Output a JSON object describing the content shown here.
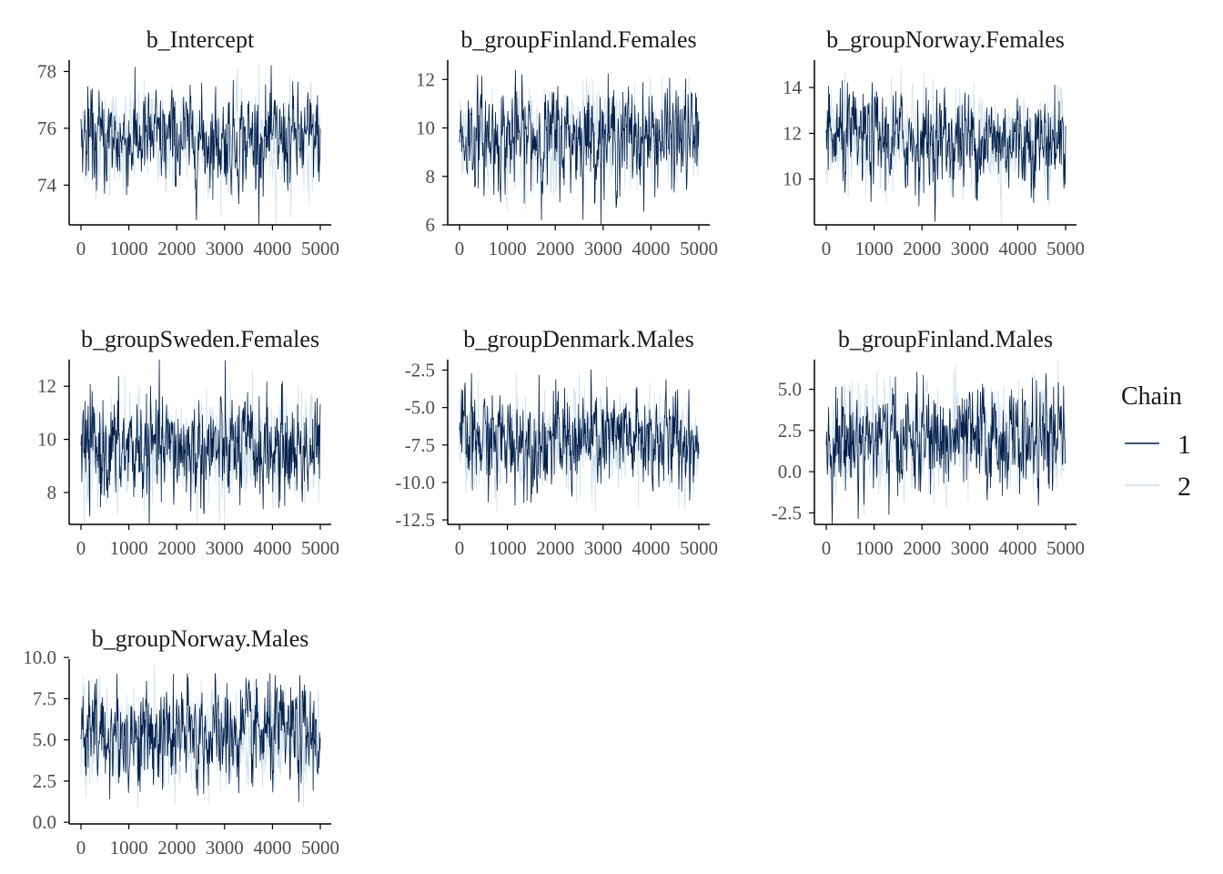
{
  "colors": {
    "chain1": "#011f4b",
    "chain2": "#d1e1ec",
    "axis": "#000000",
    "text": "#1a1a1a",
    "tick_text": "#4d4d4d"
  },
  "chart_data": [
    {
      "type": "line",
      "title": "b_Intercept",
      "xlim": [
        0,
        5000
      ],
      "x_ticks": [
        0,
        1000,
        2000,
        3000,
        4000,
        5000
      ],
      "x_tick_labels": [
        "0",
        "1000",
        "2000",
        "3000",
        "4000",
        "5000"
      ],
      "ylim": [
        72.6,
        78.4
      ],
      "y_ticks": [
        74,
        76,
        78
      ],
      "y_tick_labels": [
        "74",
        "76",
        "78"
      ],
      "series": [
        {
          "name": "1",
          "center": 75.6,
          "spread": 0.85
        },
        {
          "name": "2",
          "center": 75.6,
          "spread": 0.85
        }
      ]
    },
    {
      "type": "line",
      "title": "b_groupFinland.Females",
      "xlim": [
        0,
        5000
      ],
      "x_ticks": [
        0,
        1000,
        2000,
        3000,
        4000,
        5000
      ],
      "x_tick_labels": [
        "0",
        "1000",
        "2000",
        "3000",
        "4000",
        "5000"
      ],
      "ylim": [
        6.0,
        12.8
      ],
      "y_ticks": [
        6,
        8,
        10,
        12
      ],
      "y_tick_labels": [
        "6",
        "8",
        "10",
        "12"
      ],
      "series": [
        {
          "name": "1",
          "center": 9.6,
          "spread": 1.05
        },
        {
          "name": "2",
          "center": 9.6,
          "spread": 1.05
        }
      ]
    },
    {
      "type": "line",
      "title": "b_groupNorway.Females",
      "xlim": [
        0,
        5000
      ],
      "x_ticks": [
        0,
        1000,
        2000,
        3000,
        4000,
        5000
      ],
      "x_tick_labels": [
        "0",
        "1000",
        "2000",
        "3000",
        "4000",
        "5000"
      ],
      "ylim": [
        8.0,
        15.2
      ],
      "y_ticks": [
        10,
        12,
        14
      ],
      "y_tick_labels": [
        "10",
        "12",
        "14"
      ],
      "series": [
        {
          "name": "1",
          "center": 11.7,
          "spread": 1.05
        },
        {
          "name": "2",
          "center": 11.7,
          "spread": 1.05
        }
      ]
    },
    {
      "type": "line",
      "title": "b_groupSweden.Females",
      "xlim": [
        0,
        5000
      ],
      "x_ticks": [
        0,
        1000,
        2000,
        3000,
        4000,
        5000
      ],
      "x_tick_labels": [
        "0",
        "1000",
        "2000",
        "3000",
        "4000",
        "5000"
      ],
      "ylim": [
        6.8,
        13.0
      ],
      "y_ticks": [
        8,
        10,
        12
      ],
      "y_tick_labels": [
        "8",
        "10",
        "12"
      ],
      "series": [
        {
          "name": "1",
          "center": 9.6,
          "spread": 1.0
        },
        {
          "name": "2",
          "center": 9.6,
          "spread": 1.0
        }
      ]
    },
    {
      "type": "line",
      "title": "b_groupDenmark.Males",
      "xlim": [
        0,
        5000
      ],
      "x_ticks": [
        0,
        1000,
        2000,
        3000,
        4000,
        5000
      ],
      "x_tick_labels": [
        "0",
        "1000",
        "2000",
        "3000",
        "4000",
        "5000"
      ],
      "ylim": [
        -12.8,
        -1.8
      ],
      "y_ticks": [
        -12.5,
        -10.0,
        -7.5,
        -5.0,
        -2.5
      ],
      "y_tick_labels": [
        "-12.5",
        "-10.0",
        "-7.5",
        "-5.0",
        "-2.5"
      ],
      "series": [
        {
          "name": "1",
          "center": -7.2,
          "spread": 1.65
        },
        {
          "name": "2",
          "center": -7.2,
          "spread": 1.65
        }
      ]
    },
    {
      "type": "line",
      "title": "b_groupFinland.Males",
      "xlim": [
        0,
        5000
      ],
      "x_ticks": [
        0,
        1000,
        2000,
        3000,
        4000,
        5000
      ],
      "x_tick_labels": [
        "0",
        "1000",
        "2000",
        "3000",
        "4000",
        "5000"
      ],
      "ylim": [
        -3.2,
        6.8
      ],
      "y_ticks": [
        -2.5,
        0.0,
        2.5,
        5.0
      ],
      "y_tick_labels": [
        "-2.5",
        "0.0",
        "2.5",
        "5.0"
      ],
      "series": [
        {
          "name": "1",
          "center": 1.9,
          "spread": 1.55
        },
        {
          "name": "2",
          "center": 1.9,
          "spread": 1.55
        }
      ]
    },
    {
      "type": "line",
      "title": "b_groupNorway.Males",
      "xlim": [
        0,
        5000
      ],
      "x_ticks": [
        0,
        1000,
        2000,
        3000,
        4000,
        5000
      ],
      "x_tick_labels": [
        "0",
        "1000",
        "2000",
        "3000",
        "4000",
        "5000"
      ],
      "ylim": [
        -0.1,
        9.9
      ],
      "y_ticks": [
        0.0,
        2.5,
        5.0,
        7.5,
        10.0
      ],
      "y_tick_labels": [
        "0.0",
        "2.5",
        "5.0",
        "7.5",
        "10.0"
      ],
      "series": [
        {
          "name": "1",
          "center": 5.2,
          "spread": 1.55
        },
        {
          "name": "2",
          "center": 5.2,
          "spread": 1.55
        }
      ]
    }
  ],
  "legend": {
    "title": "Chain",
    "placement": "right",
    "items": [
      {
        "label": "1",
        "color": "#011f4b"
      },
      {
        "label": "2",
        "color": "#d1e1ec"
      }
    ]
  }
}
